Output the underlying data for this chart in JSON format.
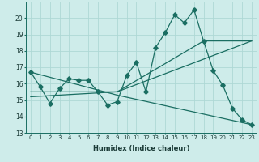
{
  "xlabel": "Humidex (Indice chaleur)",
  "background_color": "#ceecea",
  "grid_color": "#aed8d5",
  "line_color": "#1a6e62",
  "xlim": [
    -0.5,
    23.5
  ],
  "ylim": [
    13,
    21
  ],
  "xticks": [
    0,
    1,
    2,
    3,
    4,
    5,
    6,
    7,
    8,
    9,
    10,
    11,
    12,
    13,
    14,
    15,
    16,
    17,
    18,
    19,
    20,
    21,
    22,
    23
  ],
  "yticks": [
    13,
    14,
    15,
    16,
    17,
    18,
    19,
    20
  ],
  "line1_x": [
    0,
    1,
    2,
    3,
    4,
    5,
    6,
    7,
    8,
    9,
    10,
    11,
    12,
    13,
    14,
    15,
    16,
    17,
    18,
    19,
    20,
    21,
    22,
    23
  ],
  "line1_y": [
    16.7,
    15.8,
    14.8,
    15.7,
    16.3,
    16.2,
    16.2,
    15.5,
    14.7,
    14.9,
    16.5,
    17.3,
    15.5,
    18.2,
    19.1,
    20.2,
    19.7,
    20.5,
    18.6,
    16.8,
    15.9,
    14.5,
    13.8,
    13.5
  ],
  "line2_x": [
    0,
    9,
    23
  ],
  "line2_y": [
    15.5,
    15.5,
    18.6
  ],
  "line3_x": [
    0,
    9,
    23
  ],
  "line3_y": [
    16.7,
    15.3,
    13.5
  ],
  "line4_x": [
    0,
    9,
    18,
    23
  ],
  "line4_y": [
    15.2,
    15.5,
    18.6,
    18.6
  ]
}
